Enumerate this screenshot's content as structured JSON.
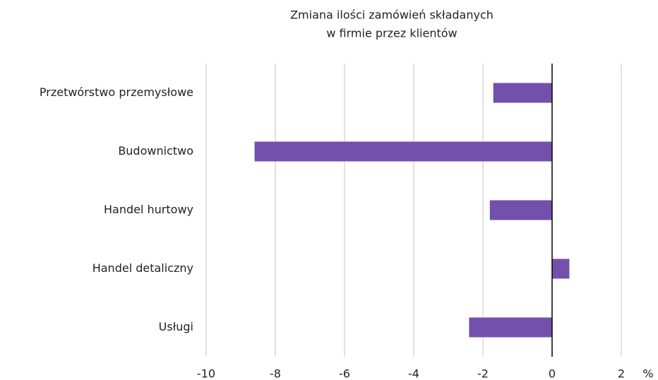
{
  "chart_data": {
    "type": "barh",
    "title": [
      "Zmiana ilości zamówień składanych",
      "w firmie przez klientów"
    ],
    "xlabel": "%",
    "categories": [
      "Przetwórstwo przemysłowe",
      "Budownictwo",
      "Handel hurtowy",
      "Handel detaliczny",
      "Usługi"
    ],
    "values": [
      -1.7,
      -8.6,
      -1.8,
      0.5,
      -2.4
    ],
    "color": "#7450ad",
    "xlim": [
      -10,
      2
    ],
    "xticks": [
      -10,
      -8,
      -6,
      -4,
      -2,
      0,
      2
    ],
    "grid": true
  }
}
